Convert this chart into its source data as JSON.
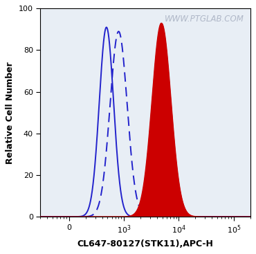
{
  "title": "",
  "xlabel": "CL647-80127(STK11),APC-H",
  "ylabel": "Relative Cell Number",
  "watermark": "WWW.PTGLAB.COM",
  "ylim": [
    0,
    100
  ],
  "xlim_log": [
    30,
    200000
  ],
  "background_color": "#ffffff",
  "plot_bg_color": "#e8eef5",
  "solid_blue": {
    "peak_x": 480,
    "peak_y": 91,
    "sigma_log": 0.13,
    "color": "#2222cc",
    "linestyle": "solid",
    "linewidth": 1.4
  },
  "dashed_blue": {
    "peak_x": 800,
    "peak_y": 89,
    "sigma_log": 0.155,
    "color": "#2222cc",
    "linestyle": "dashed",
    "linewidth": 1.4
  },
  "red_filled": {
    "peak_x": 4800,
    "peak_y": 93,
    "sigma_log": 0.17,
    "color": "#cc0000",
    "fill_color": "#cc0000",
    "linewidth": 1.0
  },
  "tick_color": "#000000",
  "label_fontsize": 9,
  "watermark_color": "#b0b8c8",
  "watermark_fontsize": 8.5
}
